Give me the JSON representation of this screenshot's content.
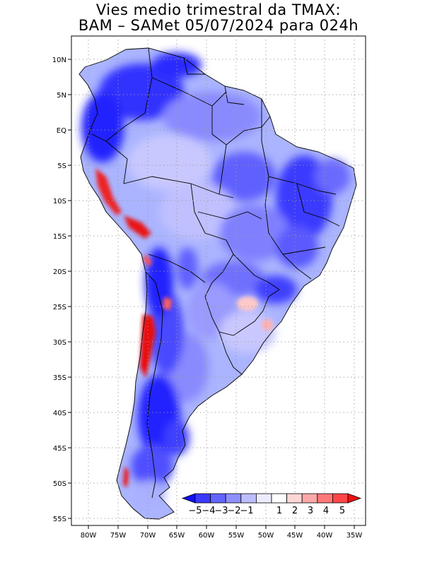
{
  "title": {
    "line1": "Vies medio trimestral da TMAX:",
    "line2": "BAM – SAMet 05/07/2024  para 024h"
  },
  "axes": {
    "lat_labels": [
      "10N",
      "5N",
      "EQ",
      "5S",
      "10S",
      "15S",
      "20S",
      "25S",
      "30S",
      "35S",
      "40S",
      "45S",
      "50S",
      "55S"
    ],
    "lon_labels": [
      "80W",
      "75W",
      "70W",
      "65W",
      "60W",
      "55W",
      "50W",
      "45W",
      "40W",
      "35W"
    ],
    "grid": "dotted"
  },
  "legend": {
    "labels": [
      "−5",
      "−4",
      "−3",
      "−2",
      "−1",
      "1",
      "2",
      "3",
      "4",
      "5"
    ],
    "colors": [
      "#1010ff",
      "#3a3aff",
      "#6464ff",
      "#8f8fff",
      "#bcbcff",
      "#ececff",
      "#ffffff",
      "#ffd6d6",
      "#ffa8a8",
      "#ff7878",
      "#ff4646",
      "#ee1010"
    ]
  },
  "map": {
    "region": "South America",
    "field": "bias of TMAX"
  }
}
